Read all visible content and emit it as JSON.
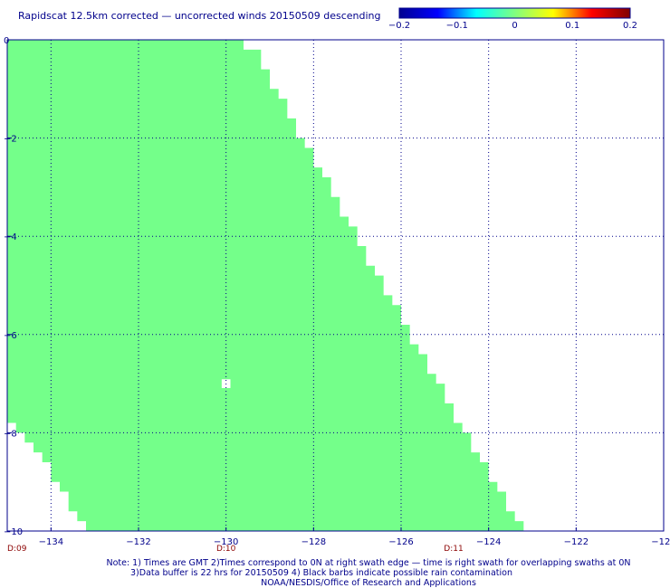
{
  "chart_data": {
    "type": "heatmap",
    "title": "Rapidscat 12.5km corrected — uncorrected winds 20150509 descending",
    "xlim": [
      -135,
      -120
    ],
    "ylim": [
      -10,
      0
    ],
    "x_ticks": [
      "-134",
      "-132",
      "-130",
      "-128",
      "-126",
      "-124",
      "-122",
      "-120"
    ],
    "y_ticks": [
      "0",
      "-2",
      "-4",
      "-6",
      "-8",
      "-10"
    ],
    "grid": true,
    "grid_style": "dotted",
    "colorbar": {
      "range": [
        -0.2,
        0.2
      ],
      "tick_labels": [
        "-0.2",
        "-0.1",
        "0",
        "0.1",
        "0.2"
      ],
      "colors": [
        "#000090",
        "#0000ff",
        "#00ffff",
        "#80ff80",
        "#ffff00",
        "#ff0000",
        "#800000"
      ]
    },
    "fill_value": 0,
    "fill_color": "#74ff8a",
    "swath_right_edge": {
      "lat": [
        0,
        -0.2,
        -0.4,
        -0.6,
        -0.8,
        -1.0,
        -1.2,
        -1.4,
        -1.6,
        -1.8,
        -2.0,
        -2.2,
        -2.4,
        -2.6,
        -2.8,
        -3.0,
        -3.2,
        -3.4,
        -3.6,
        -3.8,
        -4.0,
        -4.2,
        -4.4,
        -4.6,
        -4.8,
        -5.0,
        -5.2,
        -5.4,
        -5.6,
        -5.8,
        -6.0,
        -6.2,
        -6.4,
        -6.6,
        -6.8,
        -7.0,
        -7.2,
        -7.4,
        -7.6,
        -7.8,
        -8.0,
        -8.2,
        -8.4,
        -8.6,
        -8.8,
        -9.0,
        -9.2,
        -9.4,
        -9.6,
        -9.8,
        -10.0
      ],
      "lon": [
        -129.6,
        -129.2,
        -129.2,
        -129.0,
        -129.0,
        -128.8,
        -128.6,
        -128.6,
        -128.4,
        -128.4,
        -128.2,
        -128.0,
        -128.0,
        -127.8,
        -127.6,
        -127.6,
        -127.4,
        -127.4,
        -127.2,
        -127.0,
        -127.0,
        -126.8,
        -126.8,
        -126.6,
        -126.4,
        -126.4,
        -126.2,
        -126.0,
        -126.0,
        -125.8,
        -125.8,
        -125.6,
        -125.4,
        -125.4,
        -125.2,
        -125.0,
        -125.0,
        -124.8,
        -124.8,
        -124.6,
        -124.4,
        -124.4,
        -124.2,
        -124.0,
        -124.0,
        -123.8,
        -123.6,
        -123.6,
        -123.4,
        -123.2,
        -123.2
      ]
    },
    "swath_left_edge": {
      "lat": [
        -7.6,
        -7.8,
        -8.0,
        -8.2,
        -8.4,
        -8.6,
        -8.8,
        -9.0,
        -9.2,
        -9.4,
        -9.6,
        -9.8,
        -10.0
      ],
      "lon": [
        -135.0,
        -134.8,
        -134.6,
        -134.4,
        -134.2,
        -134.0,
        -134.0,
        -133.8,
        -133.6,
        -133.6,
        -133.4,
        -133.2,
        -133.0
      ]
    },
    "missing_cells": [
      {
        "lon": -130.0,
        "lat": -7.0
      }
    ]
  },
  "time_markers": [
    {
      "lon": -135.0,
      "label": "D:09"
    },
    {
      "lon": -130.0,
      "label": "D:10"
    },
    {
      "lon": -124.8,
      "label": "D:11"
    }
  ],
  "notes": [
    "Note: 1) Times are GMT 2)Times correspond to 0N at right swath edge — time is right swath for overlapping swaths at 0N",
    "3)Data buffer is 22 hrs for 20150509 4) Black barbs indicate possible rain contamination",
    "NOAA/NESDIS/Office of Research and Applications"
  ]
}
